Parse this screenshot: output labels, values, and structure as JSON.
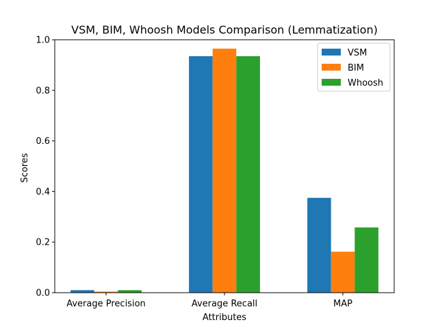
{
  "chart_data": {
    "type": "bar",
    "title": "VSM, BIM, Whoosh Models Comparison (Lemmatization)",
    "xlabel": "Attributes",
    "ylabel": "Scores",
    "categories": [
      "Average Precision",
      "Average Recall",
      "MAP"
    ],
    "series": [
      {
        "name": "VSM",
        "color": "#1f77b4",
        "values": [
          0.01,
          0.935,
          0.375
        ]
      },
      {
        "name": "BIM",
        "color": "#ff7f0e",
        "values": [
          0.004,
          0.965,
          0.162
        ]
      },
      {
        "name": "Whoosh",
        "color": "#2ca02c",
        "values": [
          0.01,
          0.935,
          0.258
        ]
      }
    ],
    "ylim": [
      0,
      1.0
    ],
    "yticks": [
      0.0,
      0.2,
      0.4,
      0.6,
      0.8,
      1.0
    ],
    "ytick_labels": [
      "0.0",
      "0.2",
      "0.4",
      "0.6",
      "0.8",
      "1.0"
    ],
    "grid": false,
    "legend_position": "top-right"
  }
}
